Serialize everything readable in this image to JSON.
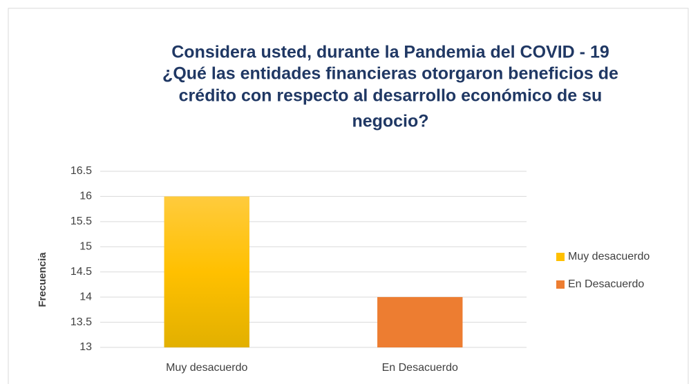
{
  "chart_data": {
    "type": "bar",
    "title": [
      "Considera usted, durante la Pandemia del COVID - 19",
      "¿Qué las entidades financieras otorgaron beneficios de",
      "crédito con respecto al desarrollo  económico de su",
      "negocio?"
    ],
    "y_label": "Frecuencia",
    "categories": [
      "Muy desacuerdo",
      "En Desacuerdo"
    ],
    "values": [
      16,
      14
    ],
    "colors": [
      "#ffc000",
      "#ed7d31"
    ],
    "ylim": [
      13,
      16.5
    ],
    "yticks": [
      13,
      13.5,
      14,
      14.5,
      15,
      15.5,
      16,
      16.5
    ],
    "grid": true,
    "legend": "right"
  }
}
